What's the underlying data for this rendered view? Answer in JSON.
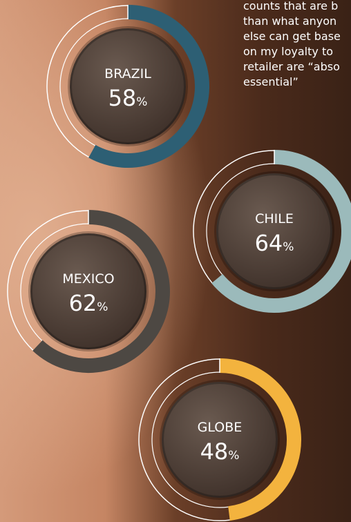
{
  "text_lines": [
    "counts that are b",
    "than what anyon",
    "else can get base",
    "on my loyalty to",
    "retailer are “abso",
    "essential”"
  ],
  "chart_data": [
    {
      "type": "donut",
      "categories": [
        "BRAZIL"
      ],
      "values": [
        58
      ],
      "value_labels": [
        "58%"
      ],
      "color": "#2d5f74"
    },
    {
      "type": "donut",
      "categories": [
        "CHILE"
      ],
      "values": [
        64
      ],
      "value_labels": [
        "64%"
      ],
      "color": "#9bbabb"
    },
    {
      "type": "donut",
      "categories": [
        "MEXICO"
      ],
      "values": [
        62
      ],
      "value_labels": [
        "62%"
      ],
      "color": "#4d4843"
    },
    {
      "type": "donut",
      "categories": [
        "GLOBE"
      ],
      "values": [
        48
      ],
      "value_labels": [
        "48%"
      ],
      "color": "#f3b33e"
    }
  ]
}
